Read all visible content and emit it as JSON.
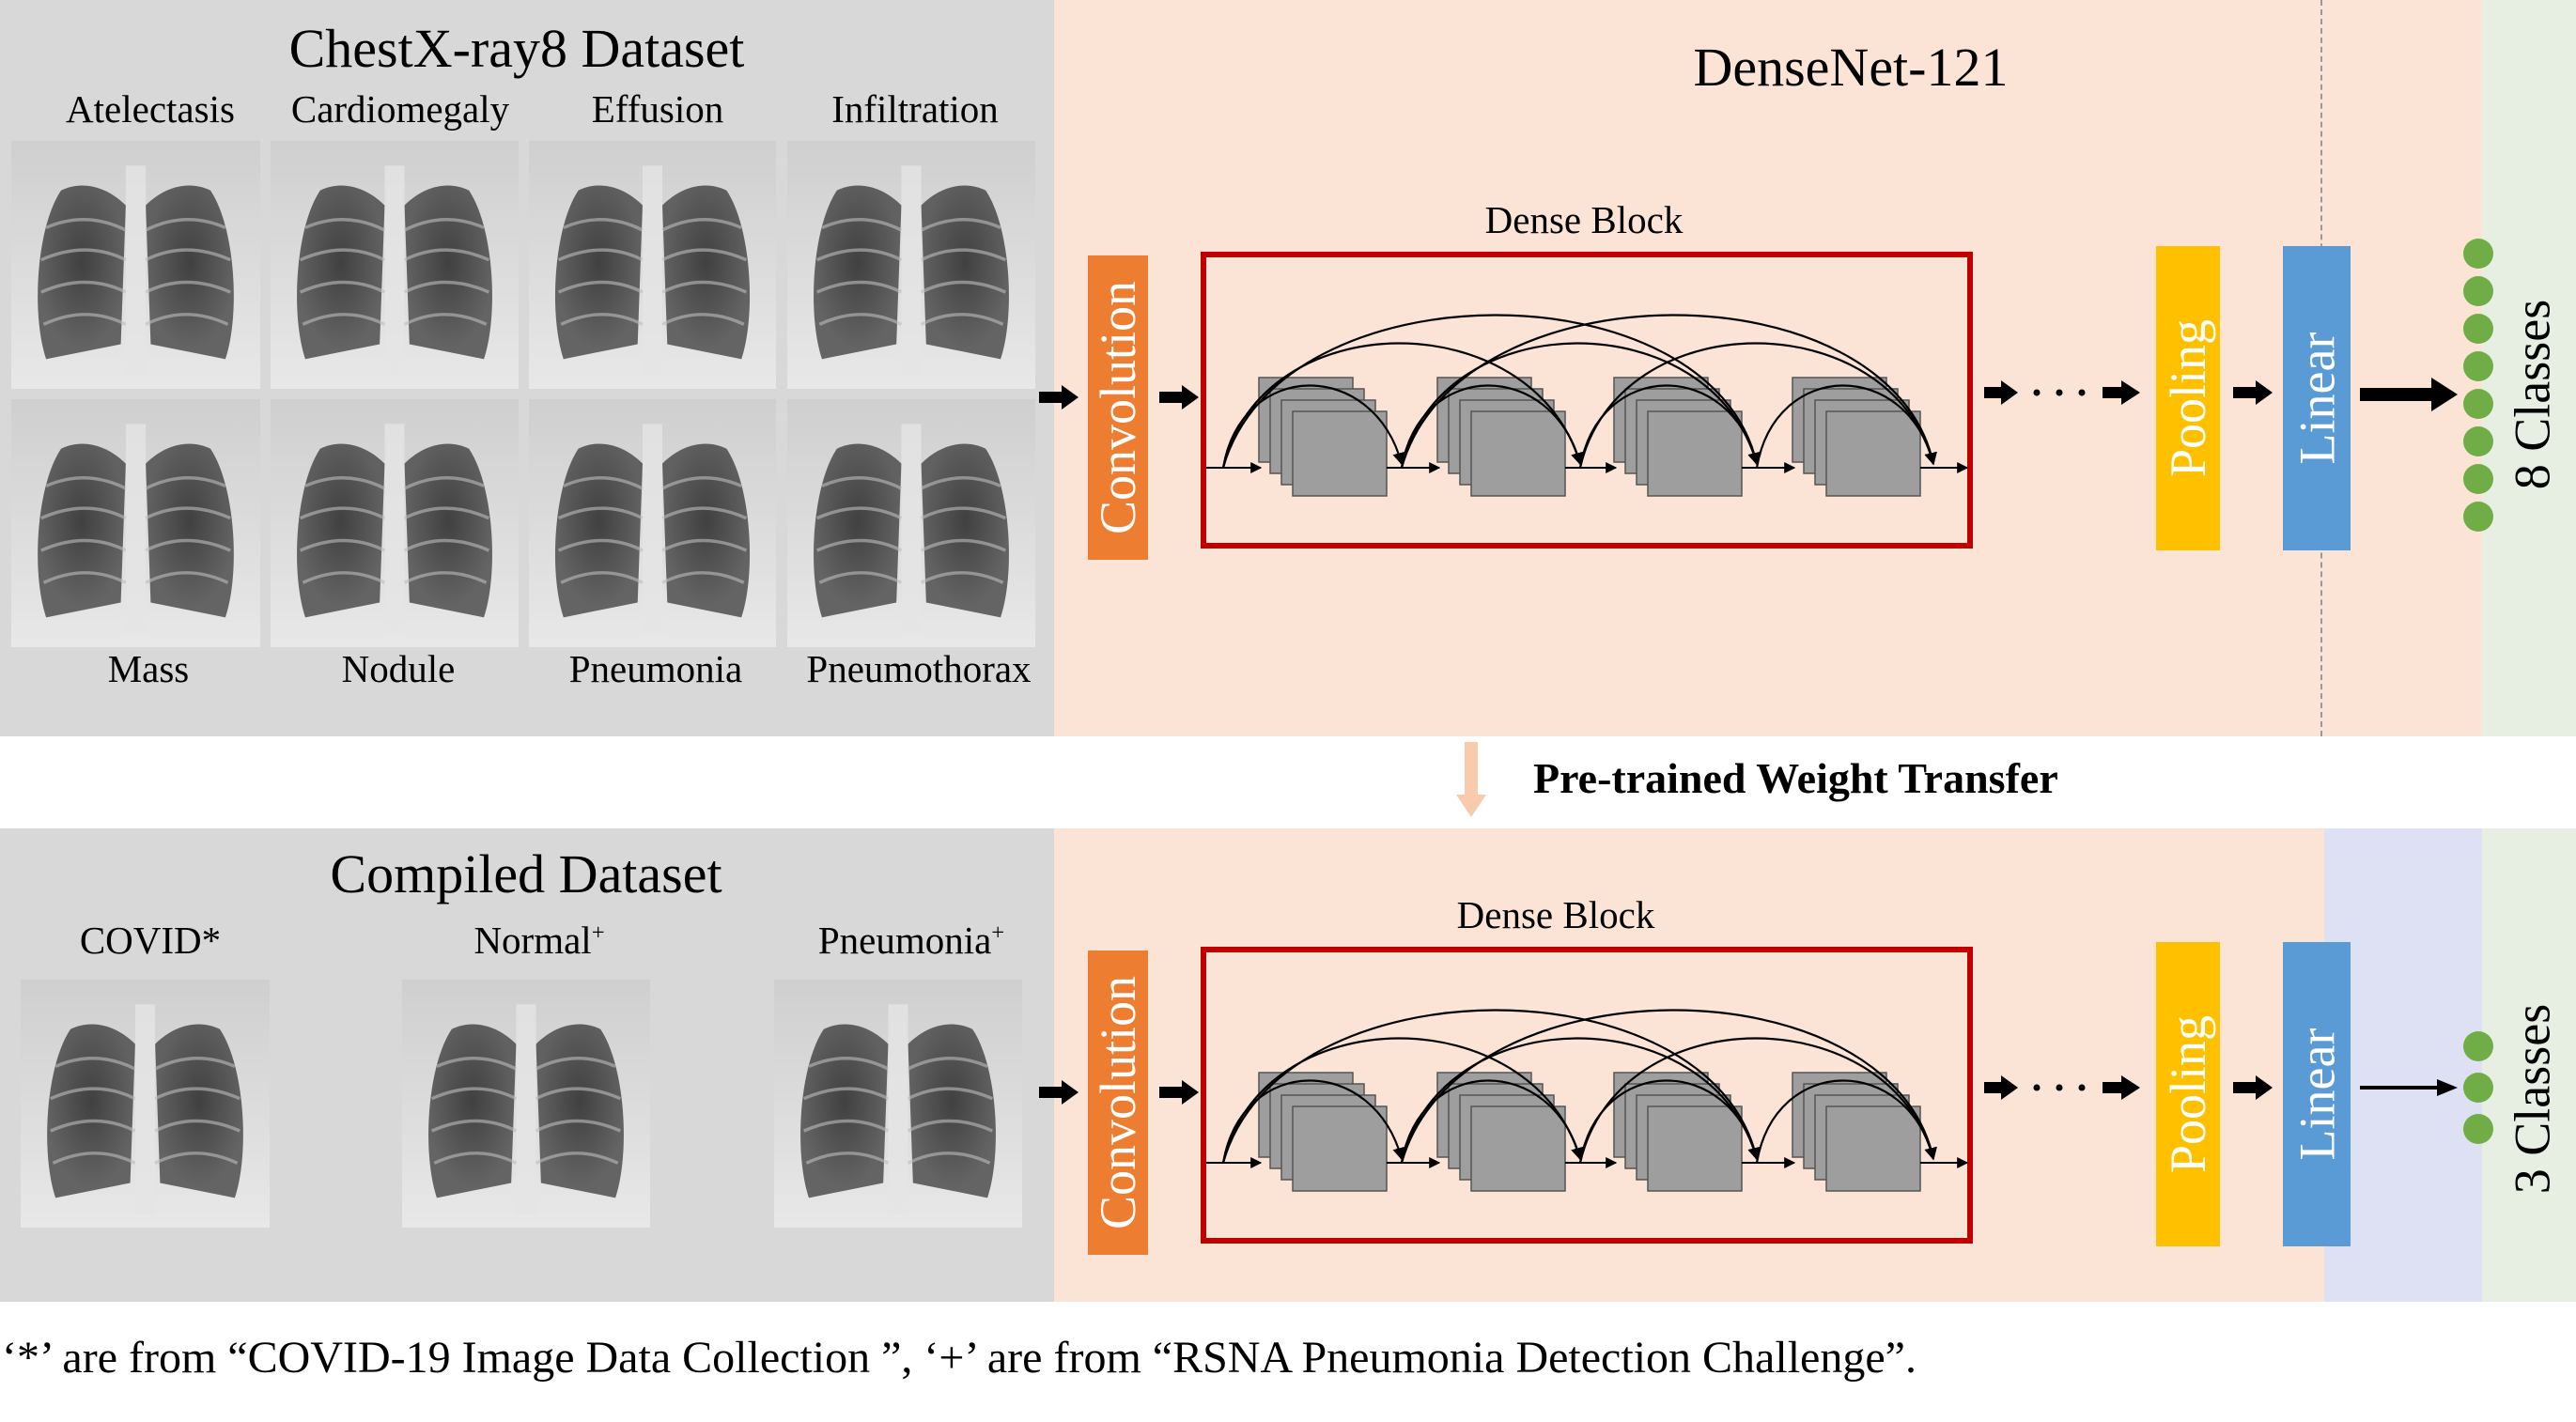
{
  "top": {
    "dataset_title": "ChestX-ray8 Dataset",
    "model_title": "DenseNet-121",
    "dense_block_label": "Dense Block",
    "convolution_label": "Convolution",
    "pooling_label": "Pooling",
    "linear_label": "Linear",
    "classes_label": "8 Classes",
    "top_labels": [
      "Atelectasis",
      "Cardiomegaly",
      "Effusion",
      "Infiltration"
    ],
    "bottom_labels": [
      "Mass",
      "Nodule",
      "Pneumonia",
      "Pneumothorax"
    ]
  },
  "transfer": {
    "label": "Pre-trained Weight Transfer"
  },
  "bottom": {
    "dataset_title": "Compiled Dataset",
    "dense_block_label": "Dense Block",
    "convolution_label": "Convolution",
    "pooling_label": "Pooling",
    "linear_label": "Linear",
    "classes_label": "3 Classes",
    "labels": [
      {
        "text": "COVID*",
        "sup": ""
      },
      {
        "text": "Normal",
        "sup": "+"
      },
      {
        "text": "Pneumonia",
        "sup": "+"
      }
    ]
  },
  "footnote": "‘*’ are from “COVID-19 Image Data Collection ”, ‘+’ are from “RSNA Pneumonia Detection Challenge”.",
  "colors": {
    "convolution": "#ed7d31",
    "pooling": "#ffc000",
    "linear": "#5b9bd5",
    "dense_block_border": "#c00000",
    "class_dot": "#70ad47",
    "transfer_arrow": "#f8cbad"
  }
}
